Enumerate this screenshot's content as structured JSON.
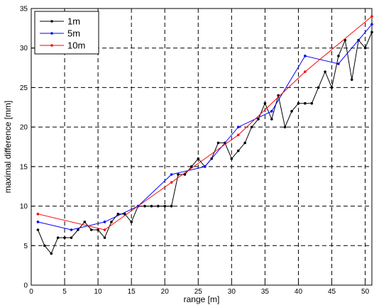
{
  "chart_data": {
    "type": "line",
    "title": "",
    "xlabel": "range [m]",
    "ylabel": "maximal difference [mm]",
    "xlim": [
      0,
      51
    ],
    "ylim": [
      0,
      35
    ],
    "xticks": [
      0,
      5,
      10,
      15,
      20,
      25,
      30,
      35,
      40,
      45,
      50
    ],
    "yticks": [
      0,
      5,
      10,
      15,
      20,
      25,
      30,
      35
    ],
    "grid": true,
    "legend_position": "top-left",
    "series": [
      {
        "name": "1m",
        "color": "#000000",
        "x": [
          1,
          2,
          3,
          4,
          5,
          6,
          7,
          8,
          9,
          10,
          11,
          12,
          13,
          14,
          15,
          16,
          17,
          18,
          19,
          20,
          21,
          22,
          23,
          24,
          25,
          26,
          27,
          28,
          29,
          30,
          31,
          32,
          33,
          34,
          35,
          36,
          37,
          38,
          39,
          40,
          41,
          42,
          43,
          44,
          45,
          46,
          47,
          48,
          49,
          50,
          51
        ],
        "y": [
          7,
          5,
          4,
          6,
          6,
          6,
          7,
          8,
          7,
          7,
          6,
          8,
          9,
          9,
          8,
          10,
          10,
          10,
          10,
          10,
          10,
          14,
          14,
          15,
          16,
          15,
          16,
          18,
          18,
          16,
          17,
          18,
          20,
          21,
          23,
          21,
          24,
          20,
          22,
          23,
          23,
          23,
          25,
          27,
          25,
          29,
          31,
          26,
          31,
          30,
          32
        ]
      },
      {
        "name": "5m",
        "color": "#0000ff",
        "x": [
          1,
          6,
          11,
          16,
          21,
          26,
          31,
          36,
          41,
          46,
          51
        ],
        "y": [
          8,
          7,
          8,
          10,
          14,
          15,
          20,
          22,
          29,
          28,
          33
        ]
      },
      {
        "name": "10m",
        "color": "#ff0000",
        "x": [
          1,
          11,
          21,
          31,
          41,
          51
        ],
        "y": [
          9,
          7,
          13,
          19,
          27,
          34
        ]
      }
    ]
  }
}
